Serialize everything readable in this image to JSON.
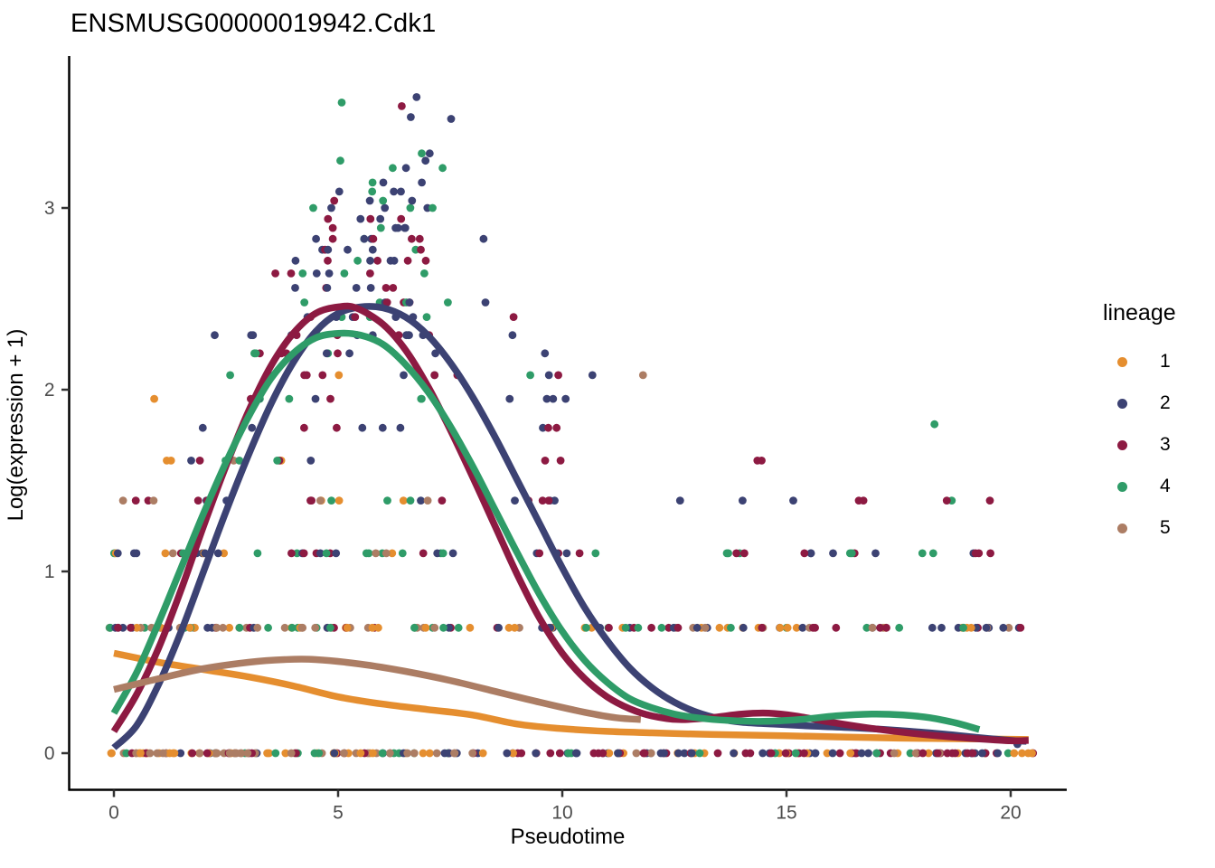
{
  "title": "ENSMUSG00000019942.Cdk1",
  "axes": {
    "x_label": "Pseudotime",
    "y_label": "Log(expression + 1)"
  },
  "legend": {
    "title": "lineage",
    "items": [
      {
        "label": "1",
        "color": "#E58E2F"
      },
      {
        "label": "2",
        "color": "#3C4273"
      },
      {
        "label": "3",
        "color": "#8D1A42"
      },
      {
        "label": "4",
        "color": "#2F9C68"
      },
      {
        "label": "5",
        "color": "#AC7D64"
      }
    ]
  },
  "chart_data": {
    "type": "scatter",
    "title": "ENSMUSG00000019942.Cdk1",
    "xlabel": "Pseudotime",
    "ylabel": "Log(expression + 1)",
    "xlim": [
      -0.6,
      21.2
    ],
    "ylim": [
      -0.21,
      3.85
    ],
    "x_ticks": [
      0,
      5,
      10,
      15,
      20
    ],
    "y_ticks": [
      0,
      1,
      2,
      3
    ],
    "grid": false,
    "legend_position": "right",
    "axis_color": "#000000",
    "tick_label_color": "#4D4D4D",
    "lineages": [
      {
        "id": "1",
        "color": "#E58E2F"
      },
      {
        "id": "2",
        "color": "#3C4273"
      },
      {
        "id": "3",
        "color": "#8D1A42"
      },
      {
        "id": "4",
        "color": "#2F9C68"
      },
      {
        "id": "5",
        "color": "#AC7D64"
      }
    ],
    "smoothers": [
      {
        "lineage": "1",
        "points": [
          [
            0,
            0.55
          ],
          [
            1,
            0.5
          ],
          [
            2,
            0.46
          ],
          [
            3,
            0.42
          ],
          [
            4,
            0.37
          ],
          [
            5,
            0.31
          ],
          [
            6,
            0.27
          ],
          [
            7,
            0.24
          ],
          [
            8,
            0.21
          ],
          [
            9,
            0.16
          ],
          [
            10,
            0.135
          ],
          [
            11,
            0.12
          ],
          [
            12,
            0.112
          ],
          [
            13,
            0.105
          ],
          [
            14,
            0.1
          ],
          [
            15.5,
            0.093
          ],
          [
            17,
            0.085
          ],
          [
            18.5,
            0.08
          ],
          [
            19.5,
            0.078
          ],
          [
            20.4,
            0.075
          ]
        ]
      },
      {
        "lineage": "2",
        "points": [
          [
            0,
            0.03
          ],
          [
            0.5,
            0.15
          ],
          [
            1,
            0.38
          ],
          [
            1.5,
            0.67
          ],
          [
            2,
            1.0
          ],
          [
            2.5,
            1.33
          ],
          [
            3,
            1.64
          ],
          [
            3.5,
            1.92
          ],
          [
            4,
            2.15
          ],
          [
            4.5,
            2.32
          ],
          [
            5,
            2.42
          ],
          [
            5.5,
            2.455
          ],
          [
            6,
            2.45
          ],
          [
            6.5,
            2.4
          ],
          [
            7,
            2.3
          ],
          [
            7.5,
            2.15
          ],
          [
            8,
            1.96
          ],
          [
            8.5,
            1.74
          ],
          [
            9,
            1.5
          ],
          [
            9.5,
            1.26
          ],
          [
            10,
            1.02
          ],
          [
            10.5,
            0.8
          ],
          [
            11,
            0.62
          ],
          [
            11.5,
            0.47
          ],
          [
            12,
            0.36
          ],
          [
            12.5,
            0.28
          ],
          [
            13,
            0.225
          ],
          [
            13.5,
            0.19
          ],
          [
            14,
            0.17
          ],
          [
            14.7,
            0.16
          ],
          [
            15.5,
            0.15
          ],
          [
            16.5,
            0.14
          ],
          [
            17.5,
            0.125
          ],
          [
            18.5,
            0.105
          ],
          [
            19.3,
            0.085
          ],
          [
            20,
            0.07
          ],
          [
            20.35,
            0.065
          ]
        ]
      },
      {
        "lineage": "3",
        "points": [
          [
            0,
            0.12
          ],
          [
            0.5,
            0.32
          ],
          [
            1,
            0.58
          ],
          [
            1.5,
            0.9
          ],
          [
            2,
            1.25
          ],
          [
            2.5,
            1.58
          ],
          [
            3,
            1.88
          ],
          [
            3.5,
            2.13
          ],
          [
            4,
            2.31
          ],
          [
            4.5,
            2.42
          ],
          [
            5,
            2.455
          ],
          [
            5.4,
            2.45
          ],
          [
            6,
            2.36
          ],
          [
            6.5,
            2.22
          ],
          [
            7,
            2.02
          ],
          [
            7.5,
            1.78
          ],
          [
            8,
            1.52
          ],
          [
            8.5,
            1.25
          ],
          [
            9,
            0.98
          ],
          [
            9.5,
            0.74
          ],
          [
            10,
            0.55
          ],
          [
            10.5,
            0.41
          ],
          [
            11,
            0.31
          ],
          [
            11.5,
            0.245
          ],
          [
            12,
            0.205
          ],
          [
            12.6,
            0.185
          ],
          [
            13.3,
            0.195
          ],
          [
            14,
            0.215
          ],
          [
            14.6,
            0.22
          ],
          [
            15.2,
            0.205
          ],
          [
            16,
            0.17
          ],
          [
            16.8,
            0.14
          ],
          [
            17.6,
            0.115
          ],
          [
            18.4,
            0.095
          ],
          [
            19.2,
            0.08
          ],
          [
            20,
            0.068
          ],
          [
            20.4,
            0.07
          ]
        ]
      },
      {
        "lineage": "4",
        "points": [
          [
            0,
            0.22
          ],
          [
            0.5,
            0.44
          ],
          [
            1,
            0.72
          ],
          [
            1.5,
            1.02
          ],
          [
            2,
            1.32
          ],
          [
            2.5,
            1.6
          ],
          [
            3,
            1.85
          ],
          [
            3.5,
            2.06
          ],
          [
            4,
            2.2
          ],
          [
            4.5,
            2.285
          ],
          [
            5,
            2.31
          ],
          [
            5.5,
            2.3
          ],
          [
            6,
            2.25
          ],
          [
            6.5,
            2.14
          ],
          [
            7,
            1.99
          ],
          [
            7.5,
            1.8
          ],
          [
            8,
            1.58
          ],
          [
            8.5,
            1.34
          ],
          [
            9,
            1.1
          ],
          [
            9.5,
            0.87
          ],
          [
            10,
            0.67
          ],
          [
            10.5,
            0.51
          ],
          [
            11,
            0.39
          ],
          [
            11.5,
            0.3
          ],
          [
            12,
            0.25
          ],
          [
            12.5,
            0.215
          ],
          [
            13,
            0.195
          ],
          [
            13.7,
            0.18
          ],
          [
            14.5,
            0.175
          ],
          [
            15.3,
            0.185
          ],
          [
            16.1,
            0.205
          ],
          [
            16.9,
            0.215
          ],
          [
            17.6,
            0.21
          ],
          [
            18.2,
            0.195
          ],
          [
            18.8,
            0.165
          ],
          [
            19.3,
            0.13
          ]
        ]
      },
      {
        "lineage": "5",
        "points": [
          [
            0,
            0.35
          ],
          [
            1,
            0.41
          ],
          [
            2,
            0.465
          ],
          [
            3,
            0.5
          ],
          [
            3.8,
            0.515
          ],
          [
            4.5,
            0.515
          ],
          [
            5.5,
            0.49
          ],
          [
            6.5,
            0.45
          ],
          [
            7.5,
            0.4
          ],
          [
            8.5,
            0.34
          ],
          [
            9.5,
            0.28
          ],
          [
            10.5,
            0.225
          ],
          [
            11.2,
            0.195
          ],
          [
            11.75,
            0.185
          ]
        ]
      }
    ],
    "mixes": {
      "bL": {
        "1": 40,
        "5": 22,
        "2": 12,
        "3": 13,
        "4": 13
      },
      "bR": {
        "1": 24,
        "2": 28,
        "3": 26,
        "4": 14,
        "5": 8
      },
      "m07L": {
        "1": 30,
        "5": 25,
        "2": 15,
        "3": 15,
        "4": 15
      },
      "m07R": {
        "1": 20,
        "2": 28,
        "3": 27,
        "4": 17,
        "5": 8
      },
      "upL": {
        "1": 18,
        "5": 12,
        "2": 28,
        "3": 24,
        "4": 18
      },
      "upper": {
        "2": 40,
        "3": 34,
        "4": 26
      },
      "c1": {
        "1": 1
      },
      "c2": {
        "2": 1
      },
      "c3": {
        "3": 1
      },
      "c4": {
        "4": 1
      },
      "c5": {
        "5": 1
      }
    },
    "scatter_rows": [
      {
        "v": 0,
        "segments": [
          [
            -0.1,
            4.2,
            60,
            "bL"
          ],
          [
            4.2,
            8.3,
            45,
            "bL"
          ],
          [
            8.6,
            11.5,
            25,
            "bR"
          ],
          [
            11.5,
            16,
            40,
            "bR"
          ],
          [
            16,
            20.5,
            45,
            "bR"
          ]
        ]
      },
      {
        "v": 0.69,
        "segments": [
          [
            -0.1,
            3,
            35,
            "m07L"
          ],
          [
            3,
            5.4,
            22,
            "m07L"
          ],
          [
            5.5,
            5.9,
            4,
            "m07L"
          ],
          [
            6.6,
            8.2,
            12,
            "m07L"
          ],
          [
            8.4,
            9.2,
            5,
            "m07R"
          ],
          [
            9.3,
            14,
            30,
            "m07R"
          ],
          [
            14,
            20.3,
            40,
            "m07R"
          ]
        ]
      },
      {
        "v": 1.1,
        "segments": [
          [
            -0.05,
            0.6,
            5,
            "upL"
          ],
          [
            1,
            2.8,
            10,
            "upL"
          ],
          [
            3.2,
            6,
            14,
            "upL"
          ],
          [
            6,
            8.3,
            8,
            "upL"
          ],
          [
            9.2,
            11.2,
            7,
            "upper"
          ],
          [
            13.5,
            14.7,
            5,
            "upper"
          ],
          [
            15.3,
            17.2,
            8,
            "upper"
          ],
          [
            17.7,
            19.7,
            6,
            "upper"
          ]
        ]
      },
      {
        "v": 1.39,
        "segments": [
          [
            0.1,
            1,
            4,
            "upL"
          ],
          [
            1.6,
            2.6,
            4,
            "upL"
          ],
          [
            4,
            5.1,
            6,
            "upL"
          ],
          [
            5.6,
            7.4,
            6,
            "upL"
          ],
          [
            8.6,
            10.6,
            6,
            "upper"
          ],
          [
            12.6,
            12.8,
            1,
            "c2"
          ],
          [
            13.9,
            14.1,
            1,
            "c2"
          ],
          [
            15.1,
            15.3,
            1,
            "c2"
          ],
          [
            16.5,
            16.8,
            2,
            "c3"
          ],
          [
            18.2,
            18.9,
            2,
            "upper"
          ],
          [
            19.5,
            19.7,
            1,
            "c3"
          ]
        ]
      },
      {
        "v": 1.61,
        "segments": [
          [
            0.7,
            1.3,
            2,
            "c1"
          ],
          [
            1.6,
            2.8,
            5,
            "upL"
          ],
          [
            3.5,
            4.6,
            4,
            "upL"
          ],
          [
            9.4,
            10.1,
            2,
            "c3"
          ],
          [
            14.3,
            14.5,
            1,
            "c3"
          ]
        ]
      },
      {
        "v": 1.79,
        "segments": [
          [
            1.9,
            2.1,
            1,
            "c2"
          ],
          [
            2.9,
            3.1,
            1,
            "upper"
          ],
          [
            4.1,
            6.6,
            5,
            "upper"
          ],
          [
            9.4,
            10.3,
            3,
            "upper"
          ]
        ]
      },
      {
        "v": 1.95,
        "segments": [
          [
            2.8,
            4.9,
            6,
            "upL"
          ],
          [
            6.5,
            7.1,
            2,
            "upper"
          ],
          [
            8.8,
            10.1,
            4,
            "c2"
          ]
        ]
      },
      {
        "v": 2.08,
        "segments": [
          [
            2.4,
            2.6,
            1,
            "upper"
          ],
          [
            3.3,
            5.1,
            5,
            "upL"
          ],
          [
            5.6,
            7.7,
            4,
            "upper"
          ],
          [
            9.1,
            10.7,
            4,
            "upper"
          ]
        ]
      },
      {
        "v": 2.2,
        "segments": [
          [
            2.9,
            7.5,
            10,
            "upper"
          ],
          [
            9.55,
            9.75,
            1,
            "c2"
          ]
        ]
      },
      {
        "v": 2.3,
        "segments": [
          [
            2.2,
            2.4,
            1,
            "upper"
          ],
          [
            3,
            7.6,
            14,
            "upper"
          ],
          [
            8.85,
            9.05,
            1,
            "c2"
          ]
        ]
      },
      {
        "v": 2.4,
        "segments": [
          [
            3.2,
            7.1,
            10,
            "upper"
          ],
          [
            8.85,
            9.05,
            1,
            "c3"
          ]
        ]
      },
      {
        "v": 2.48,
        "segments": [
          [
            3.6,
            7.6,
            9,
            "upper"
          ],
          [
            8.25,
            8.45,
            1,
            "c2"
          ]
        ]
      },
      {
        "v": 2.56,
        "segments": [
          [
            4,
            7.1,
            7,
            "upper"
          ]
        ]
      },
      {
        "v": 2.64,
        "segments": [
          [
            3.5,
            7.4,
            8,
            "upper"
          ]
        ]
      },
      {
        "v": 2.71,
        "segments": [
          [
            4,
            7.6,
            9,
            "upper"
          ]
        ]
      },
      {
        "v": 2.77,
        "segments": [
          [
            4.3,
            7.6,
            7,
            "upper"
          ]
        ]
      },
      {
        "v": 2.83,
        "segments": [
          [
            3.9,
            7.7,
            8,
            "upper"
          ],
          [
            8.1,
            8.3,
            1,
            "c2"
          ]
        ]
      },
      {
        "v": 2.89,
        "segments": [
          [
            4.4,
            7.3,
            6,
            "upper"
          ]
        ]
      },
      {
        "v": 2.94,
        "segments": [
          [
            4.6,
            7.1,
            5,
            "upper"
          ]
        ]
      },
      {
        "v": 3.0,
        "segments": [
          [
            4.4,
            7.4,
            6,
            "upper"
          ]
        ]
      },
      {
        "v": 3.04,
        "segments": [
          [
            4.8,
            7.3,
            4,
            "upper"
          ]
        ]
      },
      {
        "v": 3.09,
        "segments": [
          [
            5,
            7.6,
            4,
            "upper"
          ]
        ]
      },
      {
        "v": 3.14,
        "segments": [
          [
            5.4,
            7.1,
            3,
            "upper"
          ]
        ]
      },
      {
        "v": 3.22,
        "segments": [
          [
            5.7,
            7.5,
            3,
            "upper"
          ]
        ]
      },
      {
        "v": 3.3,
        "segments": [
          [
            6.1,
            7.6,
            2,
            "upper"
          ]
        ]
      }
    ],
    "extra_points": [
      [
        5.08,
        3.58,
        "4"
      ],
      [
        6.75,
        3.61,
        "2"
      ],
      [
        6.42,
        3.56,
        "3"
      ],
      [
        6.62,
        3.5,
        "2"
      ],
      [
        7.52,
        3.49,
        "2"
      ],
      [
        5.05,
        3.26,
        "4"
      ],
      [
        6.95,
        3.26,
        "2"
      ],
      [
        11.8,
        2.08,
        "5"
      ],
      [
        18.3,
        1.81,
        "4"
      ],
      [
        14.35,
        1.61,
        "3"
      ],
      [
        0.9,
        1.95,
        "1"
      ],
      [
        20.15,
        0.05,
        "2"
      ]
    ]
  }
}
